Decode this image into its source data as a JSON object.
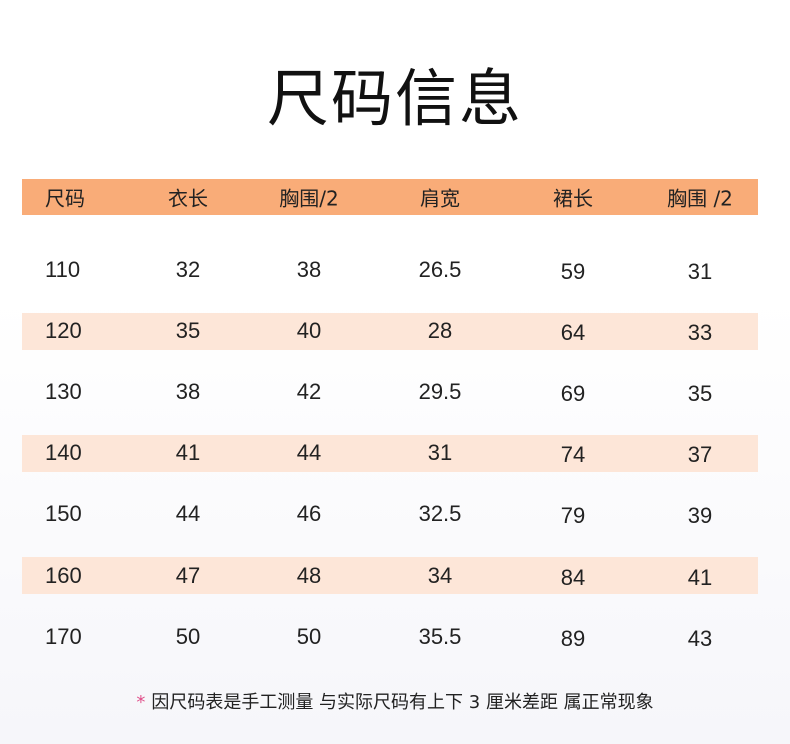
{
  "title": "尺码信息",
  "header_color": "#F9AC78",
  "stripe_color": "#FDE6D8",
  "columns": [
    "尺码",
    "衣长",
    "胸围/2",
    "肩宽",
    "裙长",
    "胸围 /2"
  ],
  "rows": [
    [
      "110",
      "32",
      "38",
      "26.5",
      "59",
      "31"
    ],
    [
      "120",
      "35",
      "40",
      "28",
      "64",
      "33"
    ],
    [
      "130",
      "38",
      "42",
      "29.5",
      "69",
      "35"
    ],
    [
      "140",
      "41",
      "44",
      "31",
      "74",
      "37"
    ],
    [
      "150",
      "44",
      "46",
      "32.5",
      "79",
      "39"
    ],
    [
      "160",
      "47",
      "48",
      "34",
      "84",
      "41"
    ],
    [
      "170",
      "50",
      "50",
      "35.5",
      "89",
      "43"
    ]
  ],
  "note": {
    "marker": "*",
    "text": "因尺码表是手工测量 与实际尺码有上下 3 厘米差距 属正常现象"
  }
}
